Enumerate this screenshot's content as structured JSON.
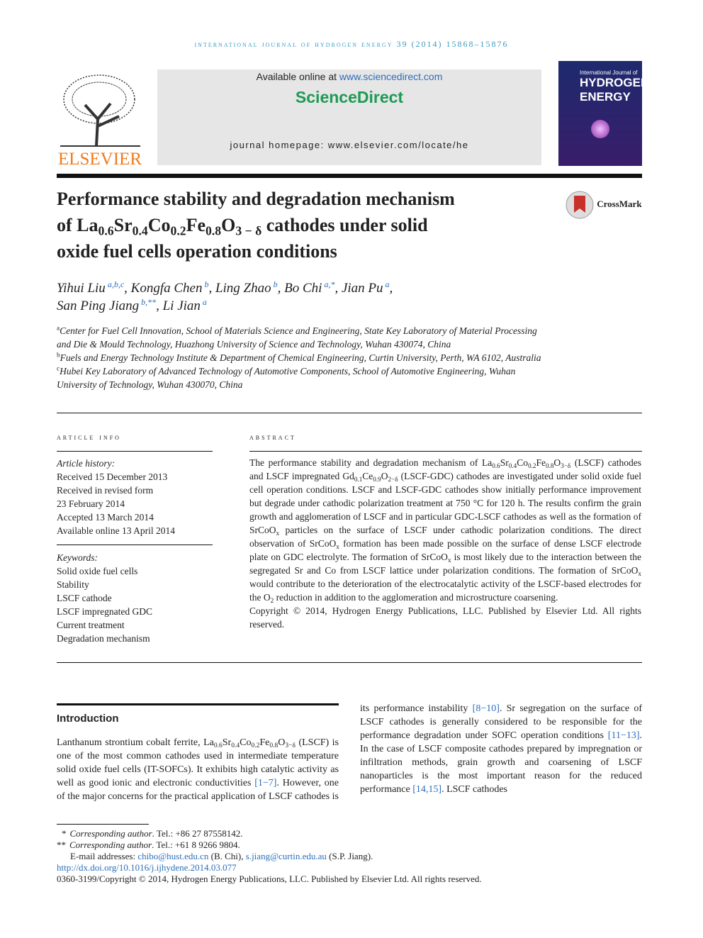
{
  "header": {
    "journal": "international journal of hydrogen energy 39 (2014) 15868–15876",
    "available": "Available online at ",
    "site": "www.sciencedirect.com",
    "brand": "ScienceDirect",
    "homepage": "journal homepage: www.elsevier.com/locate/he",
    "publisher": "ELSEVIER",
    "cover": [
      "International Journal of",
      "HYDROGEN",
      "ENERGY"
    ],
    "crossmark": "CrossMark"
  },
  "title": {
    "lines": [
      [
        "Performance stability and degradation mechanism"
      ],
      [
        "of ",
        [
          "La",
          "0.6"
        ],
        [
          "Sr",
          "0.4"
        ],
        [
          "Co",
          "0.2"
        ],
        [
          "Fe",
          "0.8"
        ],
        [
          "O",
          "3 − δ"
        ],
        " cathodes under solid"
      ],
      [
        "oxide fuel cells operation conditions"
      ]
    ]
  },
  "authors": {
    "lines": [
      [
        {
          "name": "Yihui Liu",
          "marks": "a,b,c",
          "sep": ","
        },
        {
          "name": "Kongfa Chen",
          "marks": "b",
          "sep": ","
        },
        {
          "name": "Ling Zhao",
          "marks": "b",
          "sep": ","
        },
        {
          "name": "Bo Chi",
          "marks": "a,*",
          "sep": ","
        },
        {
          "name": "Jian Pu",
          "marks": "a",
          "sep": ","
        }
      ],
      [
        {
          "name": "San Ping Jiang",
          "marks": "b,**",
          "sep": ","
        },
        {
          "name": "Li Jian",
          "marks": "a"
        }
      ]
    ]
  },
  "affiliations": [
    {
      "mark": "a",
      "text": "Center for Fuel Cell Innovation, School of Materials Science and Engineering, State Key Laboratory of Material Processing and Die & Mould Technology, Huazhong University of Science and Technology, Wuhan 430074, China"
    },
    {
      "mark": "b",
      "text": "Fuels and Energy Technology Institute & Department of Chemical Engineering, Curtin University, Perth, WA 6102, Australia"
    },
    {
      "mark": "c",
      "text": "Hubei Key Laboratory of Advanced Technology of Automotive Components, School of Automotive Engineering, Wuhan University of Technology, Wuhan 430070, China"
    }
  ],
  "article_info": {
    "heading": "article info",
    "history_label": "Article history:",
    "history": [
      "Received 15 December 2013",
      "Received in revised form",
      "23 February 2014",
      "Accepted 13 March 2014",
      "Available online 13 April 2014"
    ],
    "keywords_label": "Keywords:",
    "keywords": [
      "Solid oxide fuel cells",
      "Stability",
      "LSCF cathode",
      "LSCF impregnated GDC",
      "Current treatment",
      "Degradation mechanism"
    ]
  },
  "abstract": {
    "heading": "abstract",
    "runs": [
      "The performance stability and degradation mechanism of ",
      [
        "La",
        "0.6"
      ],
      [
        "Sr",
        "0.4"
      ],
      [
        "Co",
        "0.2"
      ],
      [
        "Fe",
        "0.8"
      ],
      [
        "O",
        "3−δ"
      ],
      " (LSCF) cathodes and LSCF impregnated ",
      [
        "Gd",
        "0.1"
      ],
      [
        "Ce",
        "0.9"
      ],
      [
        "O",
        "2−δ"
      ],
      " (LSCF-GDC) cathodes are investigated under solid oxide fuel cell operation conditions. LSCF and LSCF-GDC cathodes show initially performance improvement but degrade under cathodic polarization treatment at 750 °C for 120 h. The results confirm the grain growth and agglomeration of LSCF and in particular GDC-LSCF cathodes as well as the formation of ",
      [
        "SrCoO",
        "x"
      ],
      " particles on the surface of LSCF under cathodic polarization conditions. The direct observation of ",
      [
        "SrCoO",
        "x"
      ],
      " formation has been made possible on the surface of dense LSCF electrode plate on GDC electrolyte. The formation of ",
      [
        "SrCoO",
        "x"
      ],
      " is most likely due to the interaction between the segregated Sr and Co from LSCF lattice under polarization conditions. The formation of ",
      [
        "SrCoO",
        "x"
      ],
      " would contribute to the deterioration of the electrocatalytic activity of the LSCF-based electrodes for the ",
      [
        "O",
        "2"
      ],
      " reduction in addition to the agglomeration and microstructure coarsening."
    ],
    "copyright": "Copyright © 2014, Hydrogen Energy Publications, LLC. Published by Elsevier Ltd. All rights reserved."
  },
  "introduction": {
    "heading": "Introduction",
    "runs": [
      "Lanthanum strontium cobalt ferrite, ",
      [
        "La",
        "0.6"
      ],
      [
        "Sr",
        "0.4"
      ],
      [
        "Co",
        "0.2"
      ],
      [
        "Fe",
        "0.8"
      ],
      [
        "O",
        "3−δ"
      ],
      " (LSCF) is one of the most common cathodes used in intermediate temperature solid oxide fuel cells (IT-SOFCs). It exhibits high catalytic activity as well as good ionic and electronic conductivities ",
      {
        "link": "[1−7]"
      },
      ". However, one of the major concerns for the practical application of LSCF cathodes is its performance instability ",
      {
        "link": "[8−10]"
      },
      ". Sr segregation on the surface of LSCF cathodes is generally considered to be responsible for the performance degradation under SOFC operation conditions ",
      {
        "link": "[11−13]"
      },
      ". In the case of LSCF composite cathodes prepared by impregnation or infiltration methods, grain growth and coarsening of LSCF nanoparticles is the most important reason for the reduced performance ",
      {
        "link": "[14,15]"
      },
      ". LSCF cathodes"
    ]
  },
  "footnotes": {
    "corresponding": [
      {
        "mark": "*",
        "role": "Corresponding author",
        "rest": ". Tel.: +86 27 87558142."
      },
      {
        "mark": "**",
        "role": "Corresponding author",
        "rest": ". Tel.: +61 8 9266 9804."
      }
    ],
    "emails": [
      "E-mail addresses: ",
      {
        "link": "chibo@hust.edu.cn"
      },
      " (B. Chi), ",
      {
        "link": "s.jiang@curtin.edu.au"
      },
      " (S.P. Jiang)."
    ],
    "doi": "http://dx.doi.org/10.1016/j.ijhydene.2014.03.077",
    "issn": "0360-3199/Copyright © 2014, Hydrogen Energy Publications, LLC. Published by Elsevier Ltd. All rights reserved."
  }
}
